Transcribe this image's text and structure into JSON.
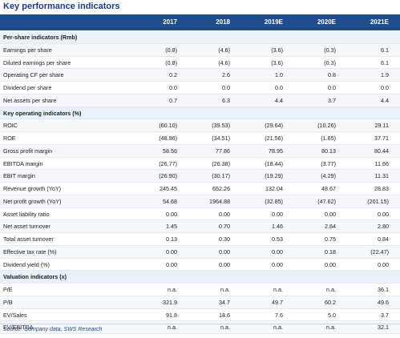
{
  "title": "Key performance indicators",
  "years": [
    "2017",
    "2018",
    "2019E",
    "2020E",
    "2021E"
  ],
  "rows": [
    {
      "label": "Per-share indicators (Rmb)",
      "section": true,
      "values": [
        "",
        "",
        "",
        "",
        ""
      ]
    },
    {
      "label": "Earnings per share",
      "values": [
        "(0.8)",
        "(4.6)",
        "(3.6)",
        "(0.3)",
        "6.1"
      ]
    },
    {
      "label": "Diluted earnings per share",
      "values": [
        "(0.8)",
        "(4.6)",
        "(3.6)",
        "(0.3)",
        "6.1"
      ]
    },
    {
      "label": "Operating CF per share",
      "values": [
        "0.2",
        "2.6",
        "1.0",
        "0.8",
        "1.9"
      ]
    },
    {
      "label": "Dividend per share",
      "values": [
        "0.0",
        "0.0",
        "0.0",
        "0.0",
        "0.0"
      ]
    },
    {
      "label": "Net assets per share",
      "values": [
        "0.7",
        "6.3",
        "4.4",
        "3.7",
        "4.4"
      ]
    },
    {
      "label": "Key operating indicators (%)",
      "section": true,
      "values": [
        "",
        "",
        "",
        "",
        ""
      ]
    },
    {
      "label": "ROIC",
      "values": [
        "(60.10)",
        "(39.53)",
        "(29.64)",
        "(10.26)",
        "29.11"
      ]
    },
    {
      "label": "ROE",
      "values": [
        "(48.96)",
        "(34.51)",
        "(21.56)",
        "(1.65)",
        "37.71"
      ]
    },
    {
      "label": "Gross profit margin",
      "values": [
        "58.56",
        "77.86",
        "78.95",
        "80.13",
        "80.44"
      ]
    },
    {
      "label": "EBITDA margin",
      "values": [
        "(26.77)",
        "(26.38)",
        "(18.44)",
        "(3.77)",
        "11.66"
      ]
    },
    {
      "label": "EBIT  margin",
      "values": [
        "(26.90)",
        "(30.17)",
        "(19.29)",
        "(4.29)",
        "11.31"
      ]
    },
    {
      "label": "Revenue growth (YoY)",
      "values": [
        "245.45",
        "652.26",
        "132.04",
        "48.67",
        "28.83"
      ]
    },
    {
      "label": "Net profit growth (YoY)",
      "values": [
        "54.68",
        "1964.88",
        "(32.85)",
        "(47.62)",
        "(201.15)"
      ]
    },
    {
      "label": "Asset liability ratio",
      "values": [
        "0.00",
        "0.00",
        "0.00",
        "0.00",
        "0.00"
      ]
    },
    {
      "label": "Net asset turnover",
      "values": [
        "1.45",
        "0.70",
        "1.46",
        "2.64",
        "2.80"
      ]
    },
    {
      "label": "Total asset turnover",
      "values": [
        "0.13",
        "0.30",
        "0.53",
        "0.75",
        "0.84"
      ]
    },
    {
      "label": "Effective tax rate (%)",
      "values": [
        "0.00",
        "0.00",
        "0.00",
        "0.18",
        "(22.47)"
      ]
    },
    {
      "label": "Dividend yield (%)",
      "values": [
        "0.00",
        "0.00",
        "0.00",
        "0.00",
        "0.00"
      ]
    },
    {
      "label": "Valuation indicators (x)",
      "section": true,
      "values": [
        "",
        "",
        "",
        "",
        ""
      ]
    },
    {
      "label": "P/E",
      "values": [
        "n.a.",
        "n.a.",
        "n.a.",
        "n.a.",
        "36.1"
      ]
    },
    {
      "label": "P/B",
      "values": [
        "321.9",
        "34.7",
        "49.7",
        "60.2",
        "49.6"
      ]
    },
    {
      "label": "EV/Sales",
      "values": [
        "91.8",
        "18.6",
        "7.6",
        "5.0",
        "3.7"
      ]
    },
    {
      "label": "EV/EBITDA",
      "values": [
        "n.a.",
        "n.a.",
        "n.a.",
        "n.a.",
        "32.1"
      ]
    }
  ],
  "source": "Source: Company data, SWS Research"
}
